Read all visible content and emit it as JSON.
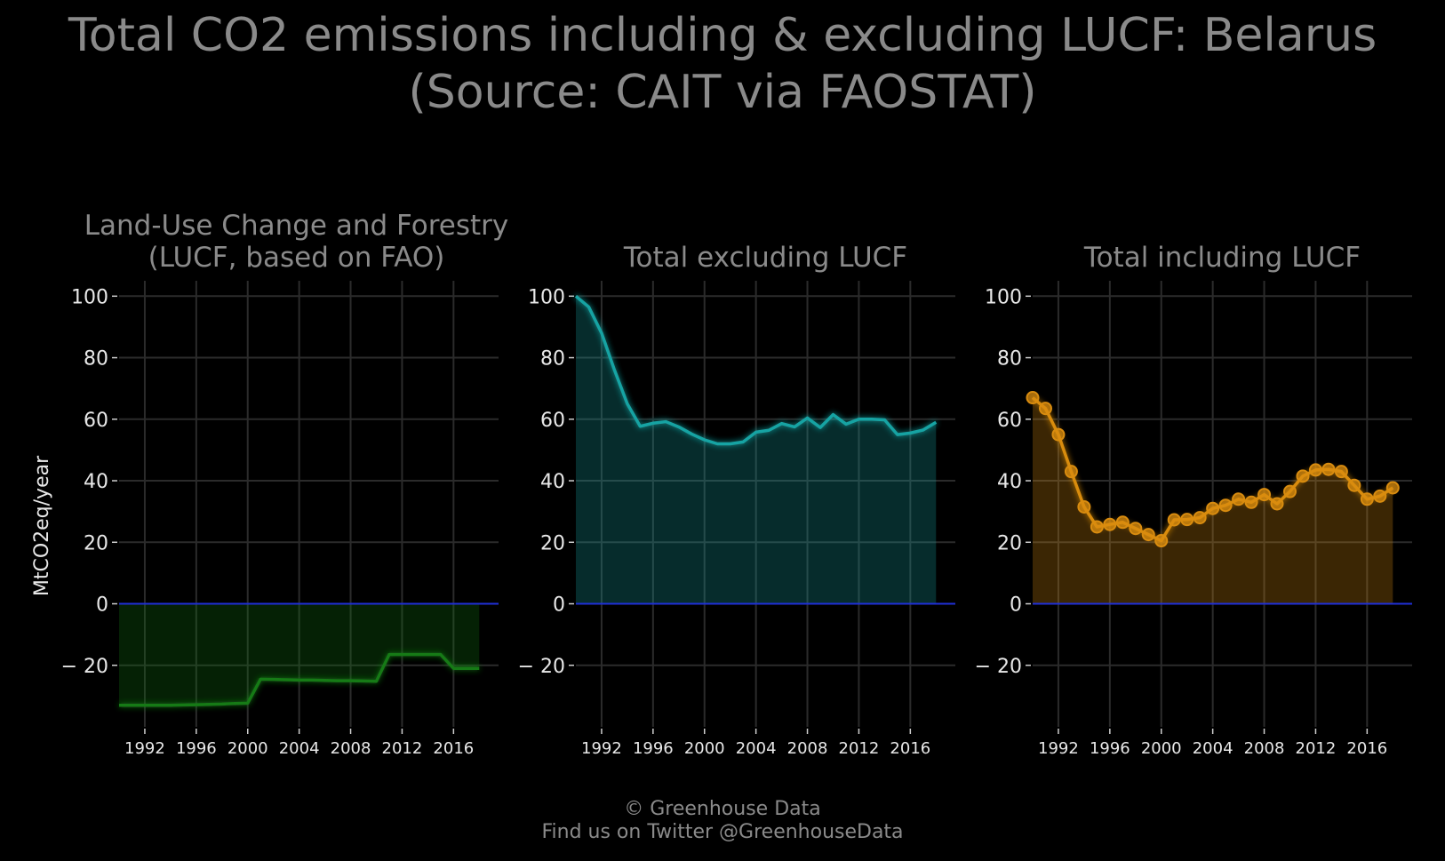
{
  "title": {
    "line1": "Total CO2 emissions including & excluding LUCF: Belarus",
    "line2": "(Source: CAIT via FAOSTAT)"
  },
  "footer": {
    "line1": "© Greenhouse Data",
    "line2": "Find us on Twitter @GreenhouseData"
  },
  "colors": {
    "background": "#000000",
    "grid": "#2b2b2b",
    "text": "#8a8a8a",
    "zero_line": "#1f2fd6",
    "lucf": "#137a13",
    "excl": "#17a3a3",
    "incl": "#d98c0f"
  },
  "chart_data": [
    {
      "type": "area",
      "title_lines": [
        "Land-Use Change and Forestry",
        "(LUCF, based on FAO)"
      ],
      "ylabel": "MtCO2eq/year",
      "xlabel": "",
      "ylim": [
        -40,
        105
      ],
      "xlim": [
        1990,
        2019.5
      ],
      "yticks": [
        100,
        80,
        60,
        40,
        20,
        0,
        -20
      ],
      "ytick_labels": [
        "100",
        "80",
        "60",
        "40",
        "20",
        "0",
        "− 20"
      ],
      "xticks": [
        1992,
        1996,
        2000,
        2004,
        2008,
        2012,
        2016
      ],
      "grid": true,
      "color_key": "lucf",
      "markers": false,
      "series": [
        {
          "x": [
            1990,
            1991,
            1992,
            1993,
            1994,
            1995,
            1996,
            1997,
            1998,
            1999,
            2000,
            2001,
            2002,
            2003,
            2004,
            2005,
            2006,
            2007,
            2008,
            2009,
            2010,
            2011,
            2012,
            2013,
            2014,
            2015,
            2016,
            2017,
            2018
          ],
          "values": [
            -33,
            -33,
            -33,
            -33,
            -33,
            -32.9,
            -32.8,
            -32.7,
            -32.6,
            -32.4,
            -32.3,
            -24.5,
            -24.6,
            -24.7,
            -24.8,
            -24.8,
            -24.9,
            -25,
            -25,
            -25.1,
            -25.2,
            -16.5,
            -16.5,
            -16.5,
            -16.5,
            -16.5,
            -21,
            -21,
            -21
          ]
        }
      ]
    },
    {
      "type": "area",
      "title_lines": [
        "Total excluding LUCF"
      ],
      "ylabel": "",
      "xlabel": "",
      "ylim": [
        -40,
        105
      ],
      "xlim": [
        1990,
        2019.5
      ],
      "yticks": [
        100,
        80,
        60,
        40,
        20,
        0,
        -20
      ],
      "ytick_labels": [
        "100",
        "80",
        "60",
        "40",
        "20",
        "0",
        "− 20"
      ],
      "xticks": [
        1992,
        1996,
        2000,
        2004,
        2008,
        2012,
        2016
      ],
      "grid": true,
      "color_key": "excl",
      "markers": false,
      "series": [
        {
          "x": [
            1990,
            1991,
            1992,
            1993,
            1994,
            1995,
            1996,
            1997,
            1998,
            1999,
            2000,
            2001,
            2002,
            2003,
            2004,
            2005,
            2006,
            2007,
            2008,
            2009,
            2010,
            2011,
            2012,
            2013,
            2014,
            2015,
            2016,
            2017,
            2018
          ],
          "values": [
            100,
            96.5,
            88,
            76,
            65,
            57.7,
            58.7,
            59.2,
            57.5,
            55.2,
            53.3,
            52,
            52,
            52.6,
            55.8,
            56.4,
            58.6,
            57.5,
            60.4,
            57.3,
            61.5,
            58.4,
            60,
            60,
            59.8,
            55,
            55.5,
            56.5,
            59
          ]
        }
      ]
    },
    {
      "type": "line",
      "title_lines": [
        "Total including LUCF"
      ],
      "ylabel": "",
      "xlabel": "",
      "ylim": [
        -40,
        105
      ],
      "xlim": [
        1990,
        2019.5
      ],
      "yticks": [
        100,
        80,
        60,
        40,
        20,
        0,
        -20
      ],
      "ytick_labels": [
        "100",
        "80",
        "60",
        "40",
        "20",
        "0",
        "− 20"
      ],
      "xticks": [
        1992,
        1996,
        2000,
        2004,
        2008,
        2012,
        2016
      ],
      "grid": true,
      "color_key": "incl",
      "markers": true,
      "series": [
        {
          "x": [
            1990,
            1991,
            1992,
            1993,
            1994,
            1995,
            1996,
            1997,
            1998,
            1999,
            2000,
            2001,
            2002,
            2003,
            2004,
            2005,
            2006,
            2007,
            2008,
            2009,
            2010,
            2011,
            2012,
            2013,
            2014,
            2015,
            2016,
            2017,
            2018
          ],
          "values": [
            67,
            63.5,
            55,
            43,
            31.5,
            25,
            25.8,
            26.5,
            24.5,
            22.5,
            20.5,
            27.3,
            27.4,
            28,
            31,
            32,
            34,
            33,
            35.5,
            32.5,
            36.5,
            41.5,
            43.5,
            43.7,
            43,
            38.5,
            34,
            35,
            37.7
          ]
        }
      ]
    }
  ]
}
